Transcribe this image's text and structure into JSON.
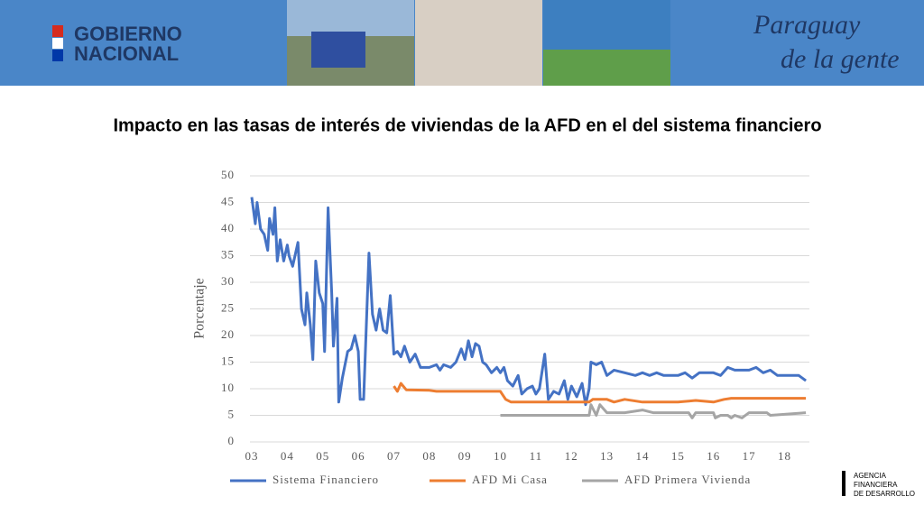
{
  "header": {
    "logo_line1": "GOBIERNO",
    "logo_line2": "NACIONAL",
    "slogan_line1": "Paraguay",
    "slogan_line2": "de la gente"
  },
  "footer": {
    "agency_line1": "AGENCIA",
    "agency_line2": "FINANCIERA",
    "agency_line3": "DE DESARROLLO"
  },
  "chart_data": {
    "type": "line",
    "title": "Impacto en las tasas de interés de viviendas de la AFD en el del sistema financiero",
    "y_label": "Porcentaje",
    "xlim": [
      3,
      18.7
    ],
    "ylim": [
      0,
      50
    ],
    "xticks": [
      {
        "value": 3,
        "label": "03"
      },
      {
        "value": 4,
        "label": "04"
      },
      {
        "value": 5,
        "label": "05"
      },
      {
        "value": 6,
        "label": "06"
      },
      {
        "value": 7,
        "label": "07"
      },
      {
        "value": 8,
        "label": "08"
      },
      {
        "value": 9,
        "label": "09"
      },
      10,
      11,
      12,
      13,
      14,
      15,
      16,
      17,
      18
    ],
    "yticks": [
      0,
      5,
      10,
      15,
      20,
      25,
      30,
      35,
      40,
      45,
      50
    ],
    "grid": true,
    "legend": "bottom",
    "series": [
      {
        "name": "Sistema Financiero",
        "color": "#4472c4",
        "x": [
          3.0,
          3.1,
          3.15,
          3.25,
          3.35,
          3.45,
          3.5,
          3.6,
          3.65,
          3.72,
          3.8,
          3.9,
          4.0,
          4.05,
          4.15,
          4.3,
          4.4,
          4.5,
          4.55,
          4.65,
          4.72,
          4.8,
          4.9,
          5.0,
          5.05,
          5.15,
          5.25,
          5.3,
          5.4,
          5.45,
          5.55,
          5.7,
          5.8,
          5.9,
          6.0,
          6.05,
          6.15,
          6.3,
          6.4,
          6.5,
          6.6,
          6.7,
          6.8,
          6.9,
          7.0,
          7.1,
          7.2,
          7.3,
          7.45,
          7.6,
          7.75,
          7.9,
          8.0,
          8.2,
          8.3,
          8.4,
          8.6,
          8.75,
          8.9,
          9.0,
          9.1,
          9.2,
          9.3,
          9.4,
          9.5,
          9.6,
          9.75,
          9.9,
          10.0,
          10.1,
          10.2,
          10.35,
          10.5,
          10.6,
          10.75,
          10.9,
          11.0,
          11.1,
          11.25,
          11.35,
          11.5,
          11.65,
          11.8,
          11.9,
          12.0,
          12.15,
          12.3,
          12.4,
          12.5,
          12.55,
          12.7,
          12.85,
          13.0,
          13.2,
          13.5,
          13.8,
          14.0,
          14.2,
          14.4,
          14.6,
          15.0,
          15.2,
          15.4,
          15.6,
          16.0,
          16.2,
          16.4,
          16.6,
          16.8,
          17.0,
          17.2,
          17.4,
          17.6,
          17.8,
          18.0,
          18.2,
          18.4,
          18.6
        ],
        "values": [
          46,
          41,
          45,
          40,
          39,
          36,
          42,
          39,
          44,
          34,
          38,
          34,
          37,
          35,
          33,
          37.5,
          25,
          22,
          28,
          22,
          15.5,
          34,
          28,
          26,
          17,
          44,
          28,
          18,
          27,
          7.5,
          12,
          17,
          17.5,
          20,
          17,
          8,
          8,
          35.5,
          24,
          21,
          25,
          21,
          20.5,
          27.5,
          16.5,
          17,
          16,
          18,
          15,
          16.5,
          14,
          14,
          14,
          14.5,
          13.5,
          14.5,
          14,
          15,
          17.5,
          15.5,
          19,
          16,
          18.5,
          18,
          15,
          14.5,
          13,
          14,
          13,
          14,
          11.5,
          10.5,
          12.5,
          9,
          10,
          10.5,
          9,
          10,
          16.5,
          8,
          9.5,
          9,
          11.5,
          8,
          10.5,
          8.5,
          11,
          7,
          10,
          15,
          14.5,
          15,
          12.5,
          13.5,
          13,
          12.5,
          13,
          12.5,
          13,
          12.5,
          12.5,
          13,
          12,
          13,
          13,
          12.5,
          14,
          13.5,
          13.5,
          13.5,
          14,
          13,
          13.5,
          12.5,
          12.5,
          12.5,
          12.5,
          11.5
        ]
      },
      {
        "name": "AFD Mi Casa",
        "color": "#ed7d31",
        "x": [
          7.0,
          7.1,
          7.2,
          7.35,
          8.0,
          8.2,
          10.0,
          10.15,
          10.3,
          12.5,
          12.6,
          13.0,
          13.2,
          13.5,
          14.0,
          14.5,
          15.0,
          15.5,
          16.0,
          16.3,
          16.5,
          18.6
        ],
        "values": [
          10.5,
          9.5,
          11,
          9.8,
          9.7,
          9.5,
          9.5,
          8,
          7.5,
          7.5,
          8,
          8,
          7.5,
          8,
          7.5,
          7.5,
          7.5,
          7.8,
          7.5,
          8,
          8.2,
          8.2
        ]
      },
      {
        "name": "AFD Primera Vivienda",
        "color": "#a5a5a5",
        "x": [
          10.0,
          12.5,
          12.55,
          12.7,
          12.8,
          13.0,
          13.5,
          14.0,
          14.3,
          15.3,
          15.4,
          15.5,
          16.0,
          16.05,
          16.2,
          16.4,
          16.5,
          16.6,
          16.8,
          17.0,
          17.5,
          17.6,
          18.6
        ],
        "values": [
          5,
          5,
          7,
          5,
          7,
          5.5,
          5.5,
          6,
          5.5,
          5.5,
          4.5,
          5.5,
          5.5,
          4.5,
          5,
          5,
          4.5,
          5,
          4.5,
          5.5,
          5.5,
          5,
          5.5
        ]
      }
    ]
  }
}
